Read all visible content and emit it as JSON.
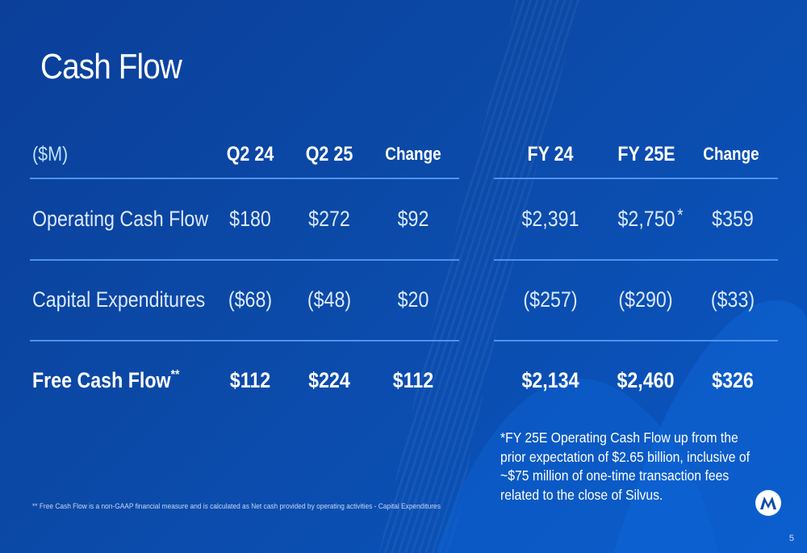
{
  "slide": {
    "title": "Cash Flow",
    "page_number": "5",
    "footnote": "** Free Cash Flow is a non-GAAP financial measure and is calculated as Net cash provided by operating activities - Capital Expenditures",
    "note": "*FY 25E Operating Cash Flow up from the prior expectation of $2.65 billion, inclusive of ~$75 million of one-time transaction fees related to the close of Silvus.",
    "logo": "motorola-logo-icon"
  },
  "table": {
    "unit_header": "($M)",
    "headers": [
      "Q2 24",
      "Q2 25",
      "Change",
      "FY 24",
      "FY 25E",
      "Change"
    ],
    "rows": [
      {
        "label": "Operating Cash Flow",
        "label_mark": "",
        "values": [
          "$180",
          "$272",
          "$92",
          "$2,391",
          "$2,750",
          "$359"
        ],
        "fy25e_mark": "*"
      },
      {
        "label": "Capital Expenditures",
        "label_mark": "",
        "values": [
          "($68)",
          "($48)",
          "$20",
          "($257)",
          "($290)",
          "($33)"
        ],
        "fy25e_mark": ""
      },
      {
        "label": "Free Cash Flow",
        "label_mark": "**",
        "values": [
          "$112",
          "$224",
          "$112",
          "$2,134",
          "$2,460",
          "$326"
        ],
        "fy25e_mark": ""
      }
    ]
  },
  "colors": {
    "background": "#0b4aa8",
    "divider": "#4d93f0",
    "unit_header": "#bfe1ff"
  }
}
